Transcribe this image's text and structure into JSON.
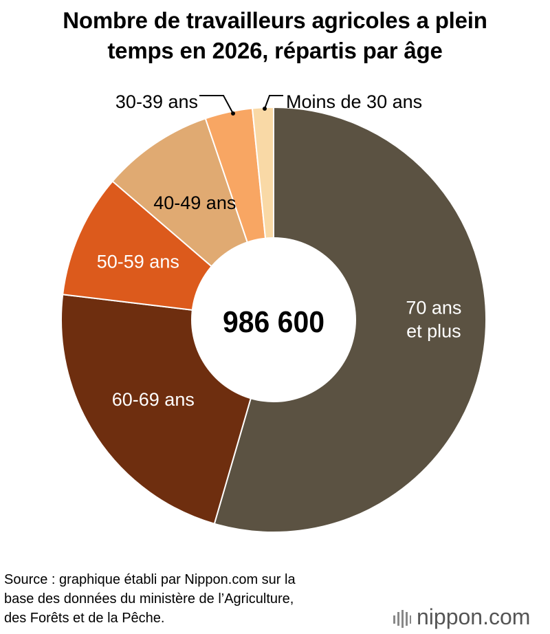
{
  "title_lines": [
    "Nombre de travailleurs agricoles a plein",
    "temps en 2026, répartis par âge"
  ],
  "source_lines": [
    "Source : graphique établi par Nippon.com sur la",
    "base des données du ministère de l’Agriculture,",
    "des Forêts et de la Pêche."
  ],
  "logo": {
    "name": "nippon",
    "suffix": ".com",
    "icon": "nippon-bars-icon"
  },
  "chart_data": {
    "type": "pie",
    "donut": true,
    "center_total": "986 600",
    "total": 986600,
    "start": "12 o'clock, clockwise",
    "slices": [
      {
        "label": "70 ans\net plus",
        "share": 0.545,
        "color": "#5b5242",
        "label_color": "#ffffff"
      },
      {
        "label": "60-69 ans",
        "share": 0.224,
        "color": "#6e2e0f",
        "label_color": "#ffffff"
      },
      {
        "label": "50-59 ans",
        "share": 0.094,
        "color": "#dc5a1c",
        "label_color": "#ffffff"
      },
      {
        "label": "40-49 ans",
        "share": 0.085,
        "color": "#e0aa72",
        "label_color": "#000000"
      },
      {
        "label": "30-39 ans",
        "share": 0.036,
        "color": "#f8a663",
        "label_color": "#000000"
      },
      {
        "label": "Moins de 30 ans",
        "share": 0.016,
        "color": "#f9d9a6",
        "label_color": "#000000"
      }
    ]
  }
}
